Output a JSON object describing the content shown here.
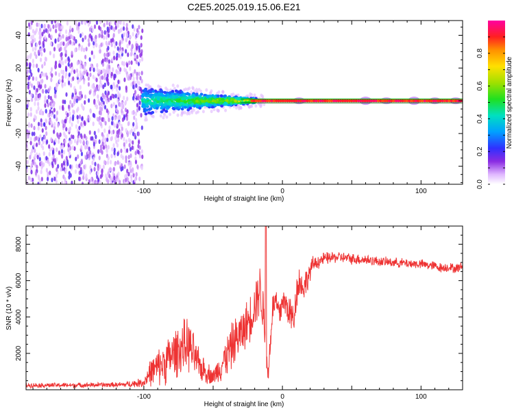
{
  "page_title": "C2E5.2025.019.15.06.E21",
  "colors": {
    "line": "#ee3333",
    "ref_line_top": "#00aa00",
    "ref_line_bottom": "#ff0000"
  },
  "chart_data": [
    {
      "type": "heatmap",
      "title": "C2E5.2025.019.15.06.E21",
      "xlabel": "Height of straight line (km)",
      "ylabel": "Frequency (Hz)",
      "xlim": [
        -185,
        130
      ],
      "ylim": [
        -51,
        49
      ],
      "x_ticks": [
        -100,
        0,
        100
      ],
      "y_ticks": [
        -40,
        -20,
        0,
        20,
        40
      ],
      "colorbar": {
        "label": "Normalized spectral amplitude",
        "range": [
          0,
          1
        ],
        "ticks": [
          0.0,
          0.2,
          0.4,
          0.6,
          0.8
        ]
      },
      "description_regions": [
        {
          "x_range": [
            -185,
            -101
          ],
          "f_range": [
            -51,
            49
          ],
          "amplitude": 0.1,
          "pattern": "broadband noise"
        },
        {
          "x_range": [
            -101,
            -20
          ],
          "f_range": [
            -8,
            10
          ],
          "amplitude": 0.35,
          "pattern": "band narrowing toward 0 Hz"
        },
        {
          "x_range": [
            -20,
            130
          ],
          "f_range": [
            -1,
            1
          ],
          "amplitude": 0.95,
          "pattern": "strong narrow line at 0 Hz"
        }
      ]
    },
    {
      "type": "line",
      "xlabel": "Height of straight line (km)",
      "ylabel": "SNR (10 * v/v)",
      "xlim": [
        -185,
        130
      ],
      "ylim": [
        0,
        9000
      ],
      "x_ticks": [
        -100,
        0,
        100
      ],
      "y_ticks": [
        2000,
        4000,
        6000,
        8000
      ],
      "series": [
        {
          "name": "SNR",
          "x": [
            -185,
            -150,
            -115,
            -100,
            -96,
            -85,
            -75,
            -68,
            -60,
            -50,
            -42,
            -35,
            -28,
            -22,
            -18,
            -16,
            -13,
            -11,
            -10,
            -9,
            -7,
            -5,
            -2,
            0,
            5,
            8,
            10,
            12,
            15,
            18,
            22,
            30,
            40,
            50,
            60,
            70,
            80,
            90,
            100,
            110,
            115,
            120,
            125,
            130
          ],
          "mean": [
            250,
            250,
            280,
            400,
            900,
            1500,
            2200,
            2500,
            1300,
            700,
            1600,
            2600,
            3300,
            4200,
            5200,
            5600,
            3600,
            1200,
            800,
            2500,
            4500,
            4900,
            4000,
            5000,
            4300,
            3800,
            5300,
            6000,
            5600,
            6100,
            6900,
            7200,
            7300,
            7200,
            7150,
            7050,
            7000,
            6950,
            6900,
            6800,
            6700,
            6750,
            6650,
            6800
          ],
          "spread": [
            150,
            150,
            160,
            300,
            800,
            1400,
            1600,
            1700,
            1000,
            500,
            1200,
            1500,
            1400,
            1500,
            1600,
            1600,
            1700,
            900,
            600,
            1000,
            900,
            1000,
            1100,
            900,
            1100,
            1300,
            1100,
            1000,
            900,
            800,
            500,
            400,
            350,
            350,
            350,
            300,
            300,
            300,
            300,
            300,
            300,
            300,
            300,
            300
          ]
        }
      ]
    }
  ]
}
